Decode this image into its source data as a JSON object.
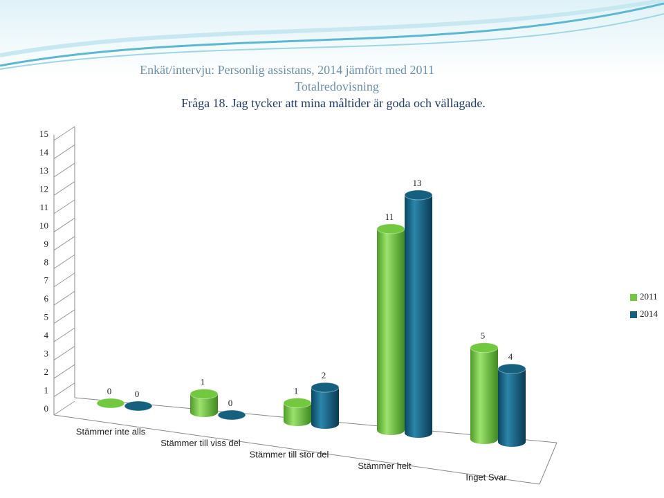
{
  "chart_data": {
    "type": "bar",
    "title": "Enkät/intervju: Personlig assistans, 2014 jämfört med 2011",
    "subtitle": "Totalredovisning",
    "question": "Fråga 18. Jag tycker att mina måltider är goda och vällagade.",
    "categories": [
      "Stämmer inte alls",
      "Stämmer till viss del",
      "Stämmer till stor del",
      "Stämmer helt",
      "Inget Svar"
    ],
    "series": [
      {
        "name": "2011",
        "color": "#72c83e",
        "values": [
          0,
          1,
          1,
          11,
          5
        ]
      },
      {
        "name": "2014",
        "color": "#14607e",
        "values": [
          0,
          0,
          2,
          13,
          4
        ]
      }
    ],
    "ylim": [
      0,
      15
    ],
    "yticks": [
      0,
      1,
      2,
      3,
      4,
      5,
      6,
      7,
      8,
      9,
      10,
      11,
      12,
      13,
      14,
      15
    ],
    "grid": true,
    "legend": "right"
  }
}
